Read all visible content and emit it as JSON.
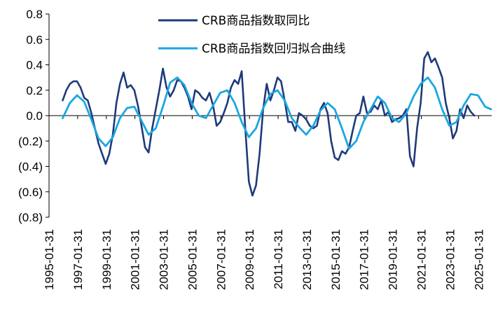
{
  "chart_data": {
    "type": "line",
    "title": "",
    "xlabel": "",
    "ylabel": "",
    "ylim": [
      -0.8,
      0.8
    ],
    "y_ticks": [
      0.8,
      0.6,
      0.4,
      0.2,
      0.0,
      -0.2,
      -0.4,
      -0.6,
      -0.8
    ],
    "y_tick_labels": [
      "0.8",
      "0.6",
      "0.4",
      "0.2",
      "0.0",
      "(0.2)",
      "(0.4)",
      "(0.6)",
      "(0.8)"
    ],
    "x_range": [
      "1995-01-31",
      "2025-12-31"
    ],
    "x_tick_labels": [
      "1995-01-31",
      "1997-01-31",
      "1999-01-31",
      "2001-01-31",
      "2003-01-31",
      "2005-01-31",
      "2007-01-31",
      "2009-01-31",
      "2011-01-31",
      "2013-01-31",
      "2015-01-31",
      "2017-01-31",
      "2019-01-31",
      "2021-01-31",
      "2023-01-31",
      "2025-01-31"
    ],
    "grid": false,
    "legend_position": "top-center",
    "series": [
      {
        "name": "CRB商品指数取同比",
        "color": "#1f3a7a",
        "points": [
          [
            "1996-01",
            0.12
          ],
          [
            "1996-04",
            0.2
          ],
          [
            "1996-07",
            0.25
          ],
          [
            "1996-10",
            0.27
          ],
          [
            "1997-01",
            0.27
          ],
          [
            "1997-04",
            0.22
          ],
          [
            "1997-07",
            0.14
          ],
          [
            "1997-10",
            0.12
          ],
          [
            "1998-01",
            0.02
          ],
          [
            "1998-04",
            -0.1
          ],
          [
            "1998-07",
            -0.22
          ],
          [
            "1998-10",
            -0.3
          ],
          [
            "1999-01",
            -0.38
          ],
          [
            "1999-04",
            -0.3
          ],
          [
            "1999-07",
            -0.15
          ],
          [
            "1999-10",
            0.1
          ],
          [
            "2000-01",
            0.25
          ],
          [
            "2000-04",
            0.34
          ],
          [
            "2000-07",
            0.22
          ],
          [
            "2000-10",
            0.24
          ],
          [
            "2001-01",
            0.2
          ],
          [
            "2001-04",
            0.08
          ],
          [
            "2001-07",
            -0.08
          ],
          [
            "2001-10",
            -0.25
          ],
          [
            "2002-01",
            -0.29
          ],
          [
            "2002-04",
            -0.1
          ],
          [
            "2002-07",
            0.05
          ],
          [
            "2002-10",
            0.2
          ],
          [
            "2003-01",
            0.37
          ],
          [
            "2003-04",
            0.22
          ],
          [
            "2003-07",
            0.15
          ],
          [
            "2003-10",
            0.2
          ],
          [
            "2004-01",
            0.28
          ],
          [
            "2004-04",
            0.27
          ],
          [
            "2004-07",
            0.22
          ],
          [
            "2004-10",
            0.15
          ],
          [
            "2005-01",
            0.05
          ],
          [
            "2005-04",
            0.2
          ],
          [
            "2005-07",
            0.18
          ],
          [
            "2005-10",
            0.14
          ],
          [
            "2006-01",
            0.12
          ],
          [
            "2006-04",
            0.18
          ],
          [
            "2006-07",
            0.08
          ],
          [
            "2006-10",
            -0.08
          ],
          [
            "2007-01",
            -0.05
          ],
          [
            "2007-04",
            0.02
          ],
          [
            "2007-07",
            0.1
          ],
          [
            "2007-10",
            0.22
          ],
          [
            "2008-01",
            0.28
          ],
          [
            "2008-04",
            0.25
          ],
          [
            "2008-07",
            0.35
          ],
          [
            "2008-10",
            -0.1
          ],
          [
            "2009-01",
            -0.52
          ],
          [
            "2009-04",
            -0.63
          ],
          [
            "2009-07",
            -0.55
          ],
          [
            "2009-10",
            -0.3
          ],
          [
            "2010-01",
            0.05
          ],
          [
            "2010-04",
            0.25
          ],
          [
            "2010-07",
            0.12
          ],
          [
            "2010-10",
            0.2
          ],
          [
            "2011-01",
            0.3
          ],
          [
            "2011-04",
            0.27
          ],
          [
            "2011-07",
            0.12
          ],
          [
            "2011-10",
            -0.05
          ],
          [
            "2012-01",
            -0.05
          ],
          [
            "2012-04",
            -0.12
          ],
          [
            "2012-07",
            0.02
          ],
          [
            "2012-10",
            0.0
          ],
          [
            "2013-01",
            -0.03
          ],
          [
            "2013-04",
            -0.08
          ],
          [
            "2013-07",
            -0.1
          ],
          [
            "2013-10",
            -0.08
          ],
          [
            "2014-01",
            0.05
          ],
          [
            "2014-04",
            0.1
          ],
          [
            "2014-07",
            0.02
          ],
          [
            "2014-10",
            -0.2
          ],
          [
            "2015-01",
            -0.33
          ],
          [
            "2015-04",
            -0.35
          ],
          [
            "2015-07",
            -0.28
          ],
          [
            "2015-10",
            -0.3
          ],
          [
            "2016-01",
            -0.25
          ],
          [
            "2016-04",
            -0.12
          ],
          [
            "2016-07",
            0.0
          ],
          [
            "2016-10",
            0.02
          ],
          [
            "2017-01",
            0.15
          ],
          [
            "2017-04",
            0.02
          ],
          [
            "2017-07",
            0.03
          ],
          [
            "2017-10",
            0.08
          ],
          [
            "2018-01",
            0.05
          ],
          [
            "2018-04",
            0.12
          ],
          [
            "2018-07",
            0.0
          ],
          [
            "2018-10",
            0.03
          ],
          [
            "2019-01",
            -0.05
          ],
          [
            "2019-04",
            -0.03
          ],
          [
            "2019-07",
            -0.02
          ],
          [
            "2019-10",
            0.0
          ],
          [
            "2020-01",
            0.05
          ],
          [
            "2020-04",
            -0.32
          ],
          [
            "2020-07",
            -0.4
          ],
          [
            "2020-10",
            -0.1
          ],
          [
            "2021-01",
            0.1
          ],
          [
            "2021-04",
            0.45
          ],
          [
            "2021-07",
            0.5
          ],
          [
            "2021-10",
            0.42
          ],
          [
            "2022-01",
            0.45
          ],
          [
            "2022-04",
            0.38
          ],
          [
            "2022-07",
            0.3
          ],
          [
            "2022-10",
            0.1
          ],
          [
            "2023-01",
            -0.02
          ],
          [
            "2023-04",
            -0.18
          ],
          [
            "2023-07",
            -0.12
          ],
          [
            "2023-10",
            0.05
          ],
          [
            "2024-01",
            -0.02
          ],
          [
            "2024-04",
            0.08
          ],
          [
            "2024-07",
            0.03
          ],
          [
            "2024-10",
            0.0
          ]
        ]
      },
      {
        "name": "CRB商品指数回归拟合曲线",
        "color": "#1aa7e0",
        "points": [
          [
            "1996-01",
            -0.02
          ],
          [
            "1996-07",
            0.1
          ],
          [
            "1997-01",
            0.16
          ],
          [
            "1997-07",
            0.11
          ],
          [
            "1998-01",
            -0.03
          ],
          [
            "1998-07",
            -0.18
          ],
          [
            "1999-01",
            -0.24
          ],
          [
            "1999-07",
            -0.17
          ],
          [
            "2000-01",
            -0.02
          ],
          [
            "2000-07",
            0.06
          ],
          [
            "2001-01",
            0.07
          ],
          [
            "2001-07",
            -0.04
          ],
          [
            "2002-01",
            -0.15
          ],
          [
            "2002-07",
            -0.1
          ],
          [
            "2003-01",
            0.07
          ],
          [
            "2003-07",
            0.26
          ],
          [
            "2004-01",
            0.3
          ],
          [
            "2004-07",
            0.24
          ],
          [
            "2005-01",
            0.1
          ],
          [
            "2005-07",
            0.0
          ],
          [
            "2006-01",
            -0.02
          ],
          [
            "2006-07",
            0.08
          ],
          [
            "2007-01",
            0.18
          ],
          [
            "2007-07",
            0.2
          ],
          [
            "2008-01",
            0.1
          ],
          [
            "2008-07",
            -0.05
          ],
          [
            "2009-01",
            -0.17
          ],
          [
            "2009-07",
            -0.1
          ],
          [
            "2010-01",
            0.06
          ],
          [
            "2010-07",
            0.17
          ],
          [
            "2011-01",
            0.2
          ],
          [
            "2011-07",
            0.12
          ],
          [
            "2012-01",
            -0.02
          ],
          [
            "2012-07",
            -0.09
          ],
          [
            "2013-01",
            -0.15
          ],
          [
            "2013-07",
            -0.08
          ],
          [
            "2014-01",
            0.04
          ],
          [
            "2014-07",
            0.1
          ],
          [
            "2015-01",
            0.05
          ],
          [
            "2015-07",
            -0.1
          ],
          [
            "2016-01",
            -0.26
          ],
          [
            "2016-07",
            -0.2
          ],
          [
            "2017-01",
            -0.05
          ],
          [
            "2017-07",
            0.05
          ],
          [
            "2018-01",
            0.15
          ],
          [
            "2018-07",
            0.1
          ],
          [
            "2019-01",
            -0.02
          ],
          [
            "2019-07",
            -0.05
          ],
          [
            "2020-01",
            0.02
          ],
          [
            "2020-07",
            0.15
          ],
          [
            "2021-01",
            0.25
          ],
          [
            "2021-07",
            0.3
          ],
          [
            "2022-01",
            0.22
          ],
          [
            "2022-07",
            0.05
          ],
          [
            "2023-01",
            -0.08
          ],
          [
            "2023-07",
            -0.05
          ],
          [
            "2024-01",
            0.08
          ],
          [
            "2024-07",
            0.17
          ],
          [
            "2025-01",
            0.16
          ],
          [
            "2025-07",
            0.07
          ],
          [
            "2025-12",
            0.05
          ]
        ]
      }
    ]
  }
}
